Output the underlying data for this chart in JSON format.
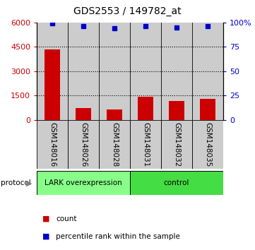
{
  "title": "GDS2553 / 149782_at",
  "samples": [
    "GSM148016",
    "GSM148026",
    "GSM148028",
    "GSM148031",
    "GSM148032",
    "GSM148035"
  ],
  "counts": [
    4350,
    730,
    640,
    1420,
    1180,
    1320
  ],
  "percentile_ranks": [
    99,
    96,
    94,
    96,
    95,
    96
  ],
  "bar_color": "#cc0000",
  "dot_color": "#0000cc",
  "left_ylim": [
    0,
    6000
  ],
  "left_yticks": [
    0,
    1500,
    3000,
    4500,
    6000
  ],
  "right_ylim": [
    0,
    100
  ],
  "right_yticks": [
    0,
    25,
    50,
    75,
    100
  ],
  "right_yticklabels": [
    "0",
    "25",
    "50",
    "75",
    "100%"
  ],
  "protocol_labels": [
    "LARK overexpression",
    "control"
  ],
  "lark_color": "#88ff88",
  "ctrl_color": "#44dd44",
  "sample_bg_color": "#cccccc",
  "dotted_lines": [
    1500,
    3000,
    4500
  ],
  "bar_width": 0.5,
  "plot_bg": "#ffffff"
}
